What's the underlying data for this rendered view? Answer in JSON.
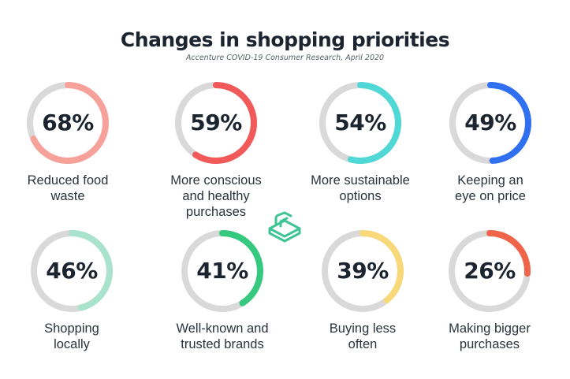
{
  "title": "Changes in shopping priorities",
  "subtitle": "Accenture COVID-19 Consumer Research, April 2020",
  "chart_data": {
    "type": "donut",
    "title": "Changes in shopping priorities",
    "subtitle": "Accenture COVID-19 Consumer Research, April 2020",
    "items": [
      {
        "label": "Reduced food waste",
        "value": 68,
        "display": "68%",
        "color": "#f6a19a",
        "line1": "Reduced food",
        "line2": "waste",
        "line3": ""
      },
      {
        "label": "More conscious and healthy purchases",
        "value": 59,
        "display": "59%",
        "color": "#f25a5a",
        "line1": "More conscious",
        "line2": "and healthy",
        "line3": "purchases"
      },
      {
        "label": "More sustainable options",
        "value": 54,
        "display": "54%",
        "color": "#4fd8d6",
        "line1": "More sustainable",
        "line2": "options",
        "line3": ""
      },
      {
        "label": "Keeping an eye on price",
        "value": 49,
        "display": "49%",
        "color": "#2f6ff0",
        "line1": "Keeping an",
        "line2": "eye on price",
        "line3": ""
      },
      {
        "label": "Shopping locally",
        "value": 46,
        "display": "46%",
        "color": "#a9e3cd",
        "line1": "Shopping",
        "line2": "locally",
        "line3": ""
      },
      {
        "label": "Well-known and trusted brands",
        "value": 41,
        "display": "41%",
        "color": "#34c97e",
        "line1": "Well-known and",
        "line2": "trusted brands",
        "line3": ""
      },
      {
        "label": "Buying less often",
        "value": 39,
        "display": "39%",
        "color": "#f8d97a",
        "line1": "Buying less",
        "line2": "often",
        "line3": ""
      },
      {
        "label": "Making bigger purchases",
        "value": 26,
        "display": "26%",
        "color": "#f0644a",
        "line1": "Making bigger",
        "line2": "purchases",
        "line3": ""
      }
    ],
    "track_color": "#d9d9d9",
    "brand_color": "#3fc493"
  }
}
